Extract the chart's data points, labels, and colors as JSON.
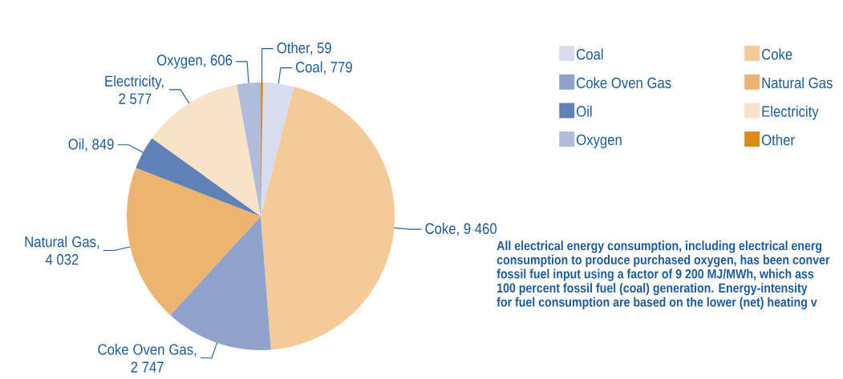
{
  "chart_data": {
    "type": "pie",
    "categories": [
      "Coal",
      "Coke",
      "Coke Oven Gas",
      "Natural Gas",
      "Oil",
      "Electricity",
      "Oxygen",
      "Other"
    ],
    "values": [
      779,
      9460,
      2747,
      4032,
      849,
      2577,
      606,
      59
    ],
    "value_labels": [
      "Coal, 779",
      "Coke, 9 460",
      "Coke Oven Gas, 2 747",
      "Natural Gas, 4 032",
      "Oil, 849",
      "Electricity, 2 577",
      "Oxygen, 606",
      "Other, 59"
    ],
    "colors": [
      "#d7dcee",
      "#f4cb98",
      "#8fa2cb",
      "#ecb46f",
      "#6182b7",
      "#f8e2c8",
      "#b0bcdc",
      "#df8a1c"
    ],
    "legend": "top right",
    "annotations": [
      "All electrical energy consumption, including electrical energ",
      "consumption to produce purchased oxygen, has been conver",
      "fossil fuel input using a factor of 9 200 MJ/MWh, which ass",
      "100 percent fossil fuel (coal) generation. Energy-intensity",
      "for fuel consumption are based on the lower (net) heating v"
    ]
  }
}
